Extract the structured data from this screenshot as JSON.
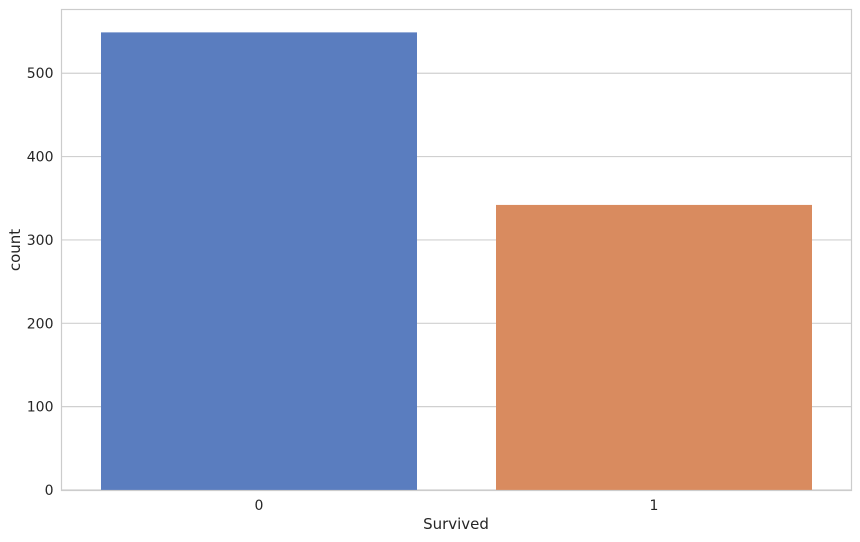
{
  "chart_data": {
    "type": "bar",
    "categories": [
      "0",
      "1"
    ],
    "values": [
      549,
      342
    ],
    "colors": [
      "#5a7dbf",
      "#d98b5f"
    ],
    "title": "",
    "xlabel": "Survived",
    "ylabel": "count",
    "ylim": [
      0,
      576.45
    ],
    "yticks": [
      0,
      100,
      200,
      300,
      400,
      500
    ],
    "grid": "horizontal",
    "grid_color": "#d0d0d0",
    "spine_color": "#cccccc"
  }
}
